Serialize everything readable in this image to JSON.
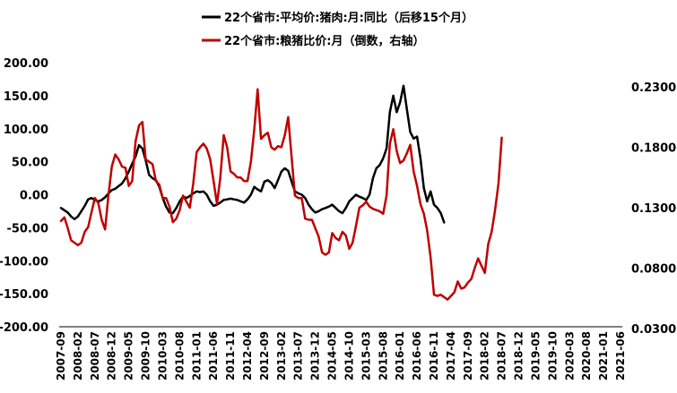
{
  "chart_data": {
    "type": "line",
    "legend_position": "top-center",
    "grid": false,
    "left_axis": {
      "ylim": [
        -200,
        200
      ],
      "ticks": [
        "200.00",
        "150.00",
        "100.00",
        "50.00",
        "0.00",
        "-50.00",
        "-100.00",
        "-150.00",
        "-200.00"
      ],
      "tick_values": [
        200,
        150,
        100,
        50,
        0,
        -50,
        -100,
        -150,
        -200
      ]
    },
    "right_axis": {
      "ylim": [
        0.03,
        0.25
      ],
      "ticks": [
        "0.2300",
        "0.1800",
        "0.1300",
        "0.0800",
        "0.0300"
      ],
      "tick_values": [
        0.23,
        0.18,
        0.13,
        0.08,
        0.03
      ]
    },
    "x_tick_labels": [
      "2007-09",
      "2008-02",
      "2008-07",
      "2008-12",
      "2009-05",
      "2009-10",
      "2010-03",
      "2010-08",
      "2011-01",
      "2011-06",
      "2011-11",
      "2012-04",
      "2012-09",
      "2013-02",
      "2013-07",
      "2013-12",
      "2014-05",
      "2014-10",
      "2015-03",
      "2015-08",
      "2016-01",
      "2016-06",
      "2016-11",
      "2017-04",
      "2017-09",
      "2018-02",
      "2018-07",
      "2018-12",
      "2019-05",
      "2019-10",
      "2020-03",
      "2020-08",
      "2021-01",
      "2021-06"
    ],
    "series": [
      {
        "name": "22个省市:平均价:猪肉:月:同比（后移15个月）",
        "axis": "left",
        "color": "#000000",
        "points": [
          [
            0,
            -20
          ],
          [
            2,
            -27
          ],
          [
            3,
            -33
          ],
          [
            4,
            -37
          ],
          [
            5,
            -33
          ],
          [
            7,
            -17
          ],
          [
            8,
            -7
          ],
          [
            9,
            -5
          ],
          [
            10,
            -8
          ],
          [
            11,
            -10
          ],
          [
            12,
            -8
          ],
          [
            13,
            -4
          ],
          [
            14,
            2
          ],
          [
            15,
            7
          ],
          [
            16,
            9
          ],
          [
            17,
            13
          ],
          [
            18,
            17
          ],
          [
            19,
            25
          ],
          [
            20,
            35
          ],
          [
            21,
            47
          ],
          [
            22,
            58
          ],
          [
            23,
            75
          ],
          [
            24,
            70
          ],
          [
            25,
            52
          ],
          [
            26,
            30
          ],
          [
            27,
            25
          ],
          [
            28,
            22
          ],
          [
            29,
            12
          ],
          [
            30,
            -5
          ],
          [
            31,
            -18
          ],
          [
            32,
            -27
          ],
          [
            33,
            -28
          ],
          [
            34,
            -20
          ],
          [
            35,
            -10
          ],
          [
            36,
            -3
          ],
          [
            37,
            -5
          ],
          [
            38,
            -2
          ],
          [
            39,
            2
          ],
          [
            40,
            5
          ],
          [
            41,
            4
          ],
          [
            42,
            5
          ],
          [
            43,
            0
          ],
          [
            44,
            -10
          ],
          [
            45,
            -17
          ],
          [
            46,
            -15
          ],
          [
            47,
            -12
          ],
          [
            48,
            -8
          ],
          [
            49,
            -7
          ],
          [
            50,
            -6
          ],
          [
            51,
            -7
          ],
          [
            52,
            -8
          ],
          [
            53,
            -10
          ],
          [
            54,
            -12
          ],
          [
            55,
            -7
          ],
          [
            56,
            0
          ],
          [
            57,
            12
          ],
          [
            58,
            8
          ],
          [
            59,
            5
          ],
          [
            60,
            20
          ],
          [
            61,
            22
          ],
          [
            62,
            18
          ],
          [
            63,
            10
          ],
          [
            64,
            22
          ],
          [
            65,
            35
          ],
          [
            66,
            40
          ],
          [
            67,
            36
          ],
          [
            68,
            20
          ],
          [
            69,
            5
          ],
          [
            70,
            2
          ],
          [
            71,
            0
          ],
          [
            72,
            -5
          ],
          [
            73,
            -15
          ],
          [
            74,
            -22
          ],
          [
            75,
            -27
          ],
          [
            76,
            -25
          ],
          [
            77,
            -22
          ],
          [
            78,
            -20
          ],
          [
            79,
            -18
          ],
          [
            80,
            -15
          ],
          [
            81,
            -20
          ],
          [
            82,
            -25
          ],
          [
            83,
            -28
          ],
          [
            84,
            -20
          ],
          [
            85,
            -10
          ],
          [
            86,
            -5
          ],
          [
            87,
            0
          ],
          [
            88,
            -3
          ],
          [
            89,
            -5
          ],
          [
            90,
            -8
          ],
          [
            91,
            0
          ],
          [
            92,
            25
          ],
          [
            93,
            40
          ],
          [
            94,
            45
          ],
          [
            95,
            55
          ],
          [
            96,
            70
          ],
          [
            97,
            125
          ],
          [
            98,
            150
          ],
          [
            99,
            125
          ],
          [
            100,
            140
          ],
          [
            101,
            165
          ],
          [
            102,
            130
          ],
          [
            103,
            95
          ],
          [
            104,
            85
          ],
          [
            105,
            88
          ],
          [
            106,
            55
          ],
          [
            107,
            10
          ],
          [
            108,
            -10
          ],
          [
            109,
            5
          ],
          [
            110,
            -15
          ],
          [
            111,
            -20
          ],
          [
            112,
            -28
          ],
          [
            113,
            -42
          ]
        ]
      },
      {
        "name": "22个省市:粮猪比价:月（倒数，右轴）",
        "axis": "right",
        "color": "#c00000",
        "points": [
          [
            0,
            0.119
          ],
          [
            1,
            0.122
          ],
          [
            2,
            0.113
          ],
          [
            3,
            0.103
          ],
          [
            4,
            0.101
          ],
          [
            5,
            0.099
          ],
          [
            6,
            0.101
          ],
          [
            7,
            0.11
          ],
          [
            8,
            0.114
          ],
          [
            9,
            0.126
          ],
          [
            10,
            0.138
          ],
          [
            11,
            0.134
          ],
          [
            12,
            0.12
          ],
          [
            13,
            0.112
          ],
          [
            14,
            0.14
          ],
          [
            15,
            0.164
          ],
          [
            16,
            0.174
          ],
          [
            17,
            0.17
          ],
          [
            18,
            0.164
          ],
          [
            19,
            0.163
          ],
          [
            20,
            0.148
          ],
          [
            21,
            0.152
          ],
          [
            22,
            0.185
          ],
          [
            23,
            0.198
          ],
          [
            24,
            0.201
          ],
          [
            25,
            0.17
          ],
          [
            26,
            0.168
          ],
          [
            27,
            0.166
          ],
          [
            28,
            0.152
          ],
          [
            29,
            0.149
          ],
          [
            30,
            0.138
          ],
          [
            31,
            0.138
          ],
          [
            32,
            0.131
          ],
          [
            33,
            0.118
          ],
          [
            34,
            0.121
          ],
          [
            35,
            0.128
          ],
          [
            36,
            0.14
          ],
          [
            37,
            0.135
          ],
          [
            38,
            0.13
          ],
          [
            39,
            0.15
          ],
          [
            40,
            0.176
          ],
          [
            41,
            0.18
          ],
          [
            42,
            0.183
          ],
          [
            43,
            0.179
          ],
          [
            44,
            0.17
          ],
          [
            45,
            0.152
          ],
          [
            46,
            0.133
          ],
          [
            47,
            0.155
          ],
          [
            48,
            0.19
          ],
          [
            49,
            0.18
          ],
          [
            50,
            0.16
          ],
          [
            51,
            0.158
          ],
          [
            52,
            0.155
          ],
          [
            53,
            0.155
          ],
          [
            54,
            0.152
          ],
          [
            55,
            0.152
          ],
          [
            56,
            0.168
          ],
          [
            57,
            0.195
          ],
          [
            58,
            0.228
          ],
          [
            59,
            0.187
          ],
          [
            60,
            0.19
          ],
          [
            61,
            0.192
          ],
          [
            62,
            0.18
          ],
          [
            63,
            0.178
          ],
          [
            64,
            0.181
          ],
          [
            65,
            0.18
          ],
          [
            66,
            0.19
          ],
          [
            67,
            0.205
          ],
          [
            68,
            0.172
          ],
          [
            69,
            0.14
          ],
          [
            70,
            0.138
          ],
          [
            71,
            0.138
          ],
          [
            72,
            0.121
          ],
          [
            73,
            0.12
          ],
          [
            74,
            0.12
          ],
          [
            75,
            0.113
          ],
          [
            76,
            0.106
          ],
          [
            77,
            0.093
          ],
          [
            78,
            0.091
          ],
          [
            79,
            0.093
          ],
          [
            80,
            0.109
          ],
          [
            81,
            0.105
          ],
          [
            82,
            0.103
          ],
          [
            83,
            0.11
          ],
          [
            84,
            0.107
          ],
          [
            85,
            0.096
          ],
          [
            86,
            0.101
          ],
          [
            87,
            0.115
          ],
          [
            88,
            0.13
          ],
          [
            89,
            0.132
          ],
          [
            90,
            0.135
          ],
          [
            91,
            0.131
          ],
          [
            92,
            0.129
          ],
          [
            93,
            0.128
          ],
          [
            94,
            0.127
          ],
          [
            95,
            0.125
          ],
          [
            96,
            0.14
          ],
          [
            97,
            0.183
          ],
          [
            98,
            0.195
          ],
          [
            99,
            0.177
          ],
          [
            100,
            0.167
          ],
          [
            101,
            0.169
          ],
          [
            102,
            0.175
          ],
          [
            103,
            0.182
          ],
          [
            104,
            0.16
          ],
          [
            105,
            0.148
          ],
          [
            106,
            0.133
          ],
          [
            107,
            0.125
          ],
          [
            108,
            0.111
          ],
          [
            109,
            0.089
          ],
          [
            110,
            0.058
          ],
          [
            111,
            0.057
          ],
          [
            112,
            0.058
          ],
          [
            113,
            0.056
          ],
          [
            114,
            0.054
          ],
          [
            115,
            0.057
          ],
          [
            116,
            0.06
          ],
          [
            117,
            0.069
          ],
          [
            118,
            0.063
          ],
          [
            119,
            0.064
          ],
          [
            120,
            0.068
          ],
          [
            121,
            0.071
          ],
          [
            122,
            0.08
          ],
          [
            123,
            0.088
          ],
          [
            124,
            0.082
          ],
          [
            125,
            0.076
          ],
          [
            126,
            0.1
          ],
          [
            127,
            0.11
          ],
          [
            128,
            0.128
          ],
          [
            129,
            0.15
          ],
          [
            130,
            0.188
          ]
        ]
      }
    ]
  }
}
